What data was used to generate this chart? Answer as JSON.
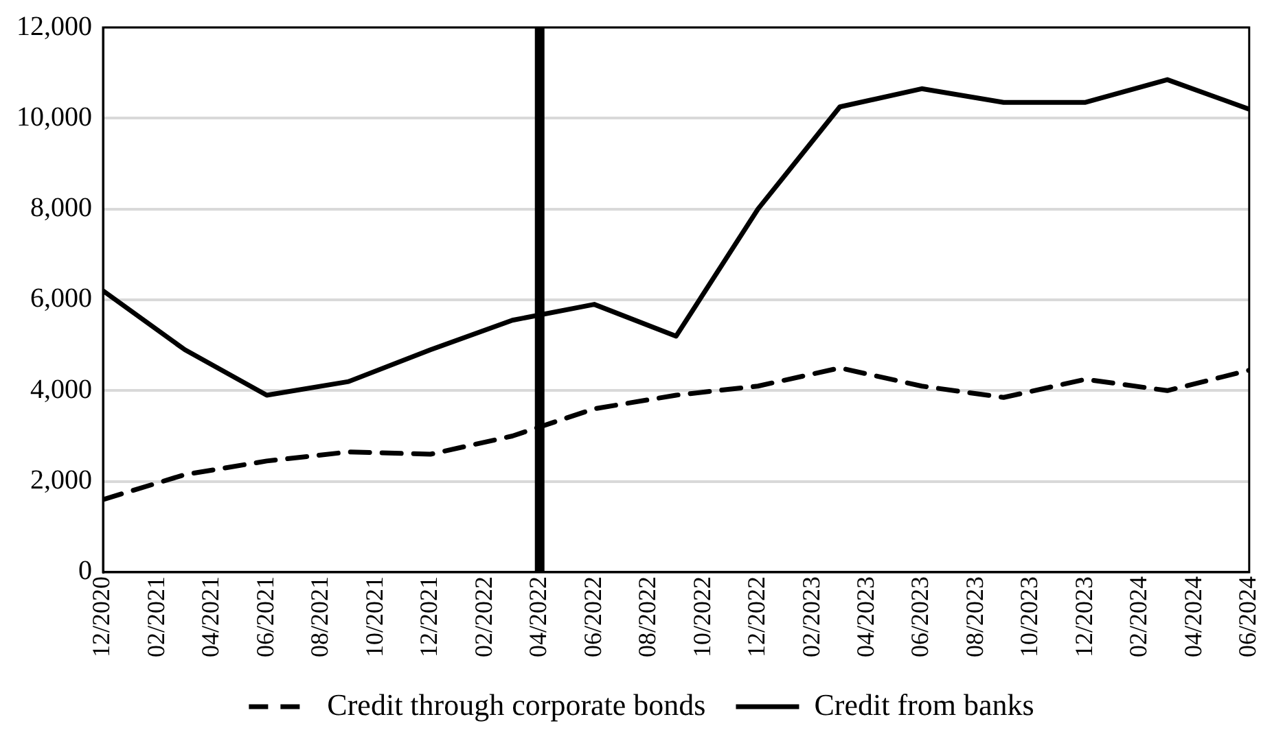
{
  "chart_data": {
    "type": "line",
    "marker": "none",
    "grid": "y",
    "legend": "bottom",
    "xlim": [
      "2020-12",
      "2024-06"
    ],
    "xticks": [
      {
        "value": "2020-12",
        "label": "12/2020"
      },
      {
        "value": "2021-02",
        "label": "02/2021"
      },
      {
        "value": "2021-04",
        "label": "04/2021"
      },
      {
        "value": "2021-06",
        "label": "06/2021"
      },
      {
        "value": "2021-08",
        "label": "08/2021"
      },
      {
        "value": "2021-10",
        "label": "10/2021"
      },
      {
        "value": "2021-12",
        "label": "12/2021"
      },
      {
        "value": "2022-02",
        "label": "02/2022"
      },
      {
        "value": "2022-04",
        "label": "04/2022"
      },
      {
        "value": "2022-06",
        "label": "06/2022"
      },
      {
        "value": "2022-08",
        "label": "08/2022"
      },
      {
        "value": "2022-10",
        "label": "10/2022"
      },
      {
        "value": "2022-12",
        "label": "12/2022"
      },
      {
        "value": "2023-02",
        "label": "02/2023"
      },
      {
        "value": "2023-04",
        "label": "04/2023"
      },
      {
        "value": "2023-06",
        "label": "06/2023"
      },
      {
        "value": "2023-08",
        "label": "08/2023"
      },
      {
        "value": "2023-10",
        "label": "10/2023"
      },
      {
        "value": "2023-12",
        "label": "12/2023"
      },
      {
        "value": "2024-02",
        "label": "02/2024"
      },
      {
        "value": "2024-04",
        "label": "04/2024"
      },
      {
        "value": "2024-06",
        "label": "06/2024"
      }
    ],
    "ylim": [
      0,
      12000
    ],
    "yticks": [
      {
        "value": 0,
        "label": "0"
      },
      {
        "value": 2000,
        "label": "2,000"
      },
      {
        "value": 4000,
        "label": "4,000"
      },
      {
        "value": 6000,
        "label": "6,000"
      },
      {
        "value": 8000,
        "label": "8,000"
      },
      {
        "value": 10000,
        "label": "10,000"
      },
      {
        "value": 12000,
        "label": "12,000"
      }
    ],
    "x": [
      "2020-12",
      "2021-03",
      "2021-06",
      "2021-09",
      "2021-12",
      "2022-03",
      "2022-06",
      "2022-09",
      "2022-12",
      "2023-03",
      "2023-06",
      "2023-09",
      "2023-12",
      "2024-03",
      "2024-06"
    ],
    "series": [
      {
        "name": "Credit through corporate bonds",
        "color": "#000000",
        "line_style": "dashed",
        "values": [
          1600,
          2150,
          2450,
          2650,
          2600,
          3000,
          3600,
          3900,
          4100,
          4500,
          4100,
          3850,
          4250,
          4000,
          4450
        ]
      },
      {
        "name": "Credit from banks",
        "color": "#000000",
        "line_style": "solid",
        "values": [
          6200,
          4900,
          3900,
          4200,
          4900,
          5550,
          5900,
          5200,
          8000,
          10250,
          10650,
          10350,
          10350,
          10850,
          10200
        ]
      }
    ],
    "ref_lines": [
      {
        "axis": "x",
        "value": "2022-04",
        "color": "#000000"
      }
    ]
  }
}
